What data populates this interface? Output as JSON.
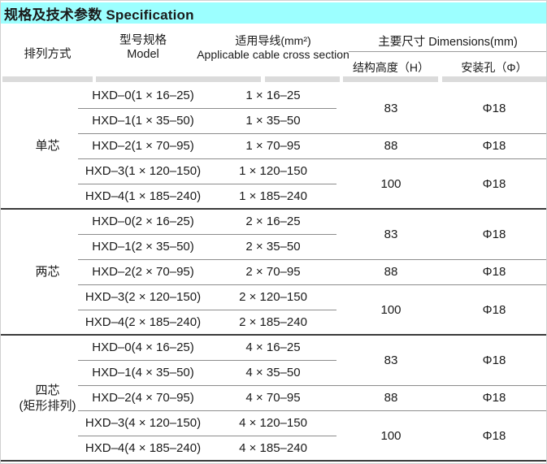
{
  "title_bar": {
    "text": "规格及技术参数 Specification",
    "bg_color": "#9CFFFF"
  },
  "header": {
    "arrangement": "排列方式",
    "model_zh": "型号规格",
    "model_en": "Model",
    "cable_zh": "适用导线(mm²)",
    "cable_en": "Applicable cable cross section",
    "dimensions": "主要尺寸  Dimensions(mm)",
    "height_label": "结构高度（H）",
    "hole_label": "安装孔（Φ）"
  },
  "colors": {
    "row_line": "#8c8c8c",
    "group_line": "#3a3a3a",
    "header_band": "#dbdbdb"
  },
  "groups": [
    {
      "arrangement_lines": [
        "单芯"
      ],
      "rows": [
        {
          "model": "HXD–0(1 × 16–25)",
          "cable": "1 × 16–25"
        },
        {
          "model": "HXD–1(1 × 35–50)",
          "cable": "1 × 35–50"
        },
        {
          "model": "HXD–2(1 × 70–95)",
          "cable": "1 × 70–95"
        },
        {
          "model": "HXD–3(1 × 120–150)",
          "cable": "1 × 120–150"
        },
        {
          "model": "HXD–4(1 × 185–240)",
          "cable": "1 × 185–240"
        }
      ],
      "dims": [
        {
          "height": "83",
          "hole": "Φ18"
        },
        {
          "height": "88",
          "hole": "Φ18"
        },
        {
          "height": "100",
          "hole": "Φ18"
        }
      ]
    },
    {
      "arrangement_lines": [
        "两芯"
      ],
      "rows": [
        {
          "model": "HXD–0(2 × 16–25)",
          "cable": "2 × 16–25"
        },
        {
          "model": "HXD–1(2 × 35–50)",
          "cable": "2 × 35–50"
        },
        {
          "model": "HXD–2(2 × 70–95)",
          "cable": "2 × 70–95"
        },
        {
          "model": "HXD–3(2 × 120–150)",
          "cable": "2 × 120–150"
        },
        {
          "model": "HXD–4(2 × 185–240)",
          "cable": "2 × 185–240"
        }
      ],
      "dims": [
        {
          "height": "83",
          "hole": "Φ18"
        },
        {
          "height": "88",
          "hole": "Φ18"
        },
        {
          "height": "100",
          "hole": "Φ18"
        }
      ]
    },
    {
      "arrangement_lines": [
        "四芯",
        "(矩形排列)"
      ],
      "rows": [
        {
          "model": "HXD–0(4 × 16–25)",
          "cable": "4 × 16–25"
        },
        {
          "model": "HXD–1(4 × 35–50)",
          "cable": "4 × 35–50"
        },
        {
          "model": "HXD–2(4 × 70–95)",
          "cable": "4 × 70–95"
        },
        {
          "model": "HXD–3(4 × 120–150)",
          "cable": "4 × 120–150"
        },
        {
          "model": "HXD–4(4 × 185–240)",
          "cable": "4 × 185–240"
        }
      ],
      "dims": [
        {
          "height": "83",
          "hole": "Φ18"
        },
        {
          "height": "88",
          "hole": "Φ18"
        },
        {
          "height": "100",
          "hole": "Φ18"
        }
      ]
    }
  ]
}
